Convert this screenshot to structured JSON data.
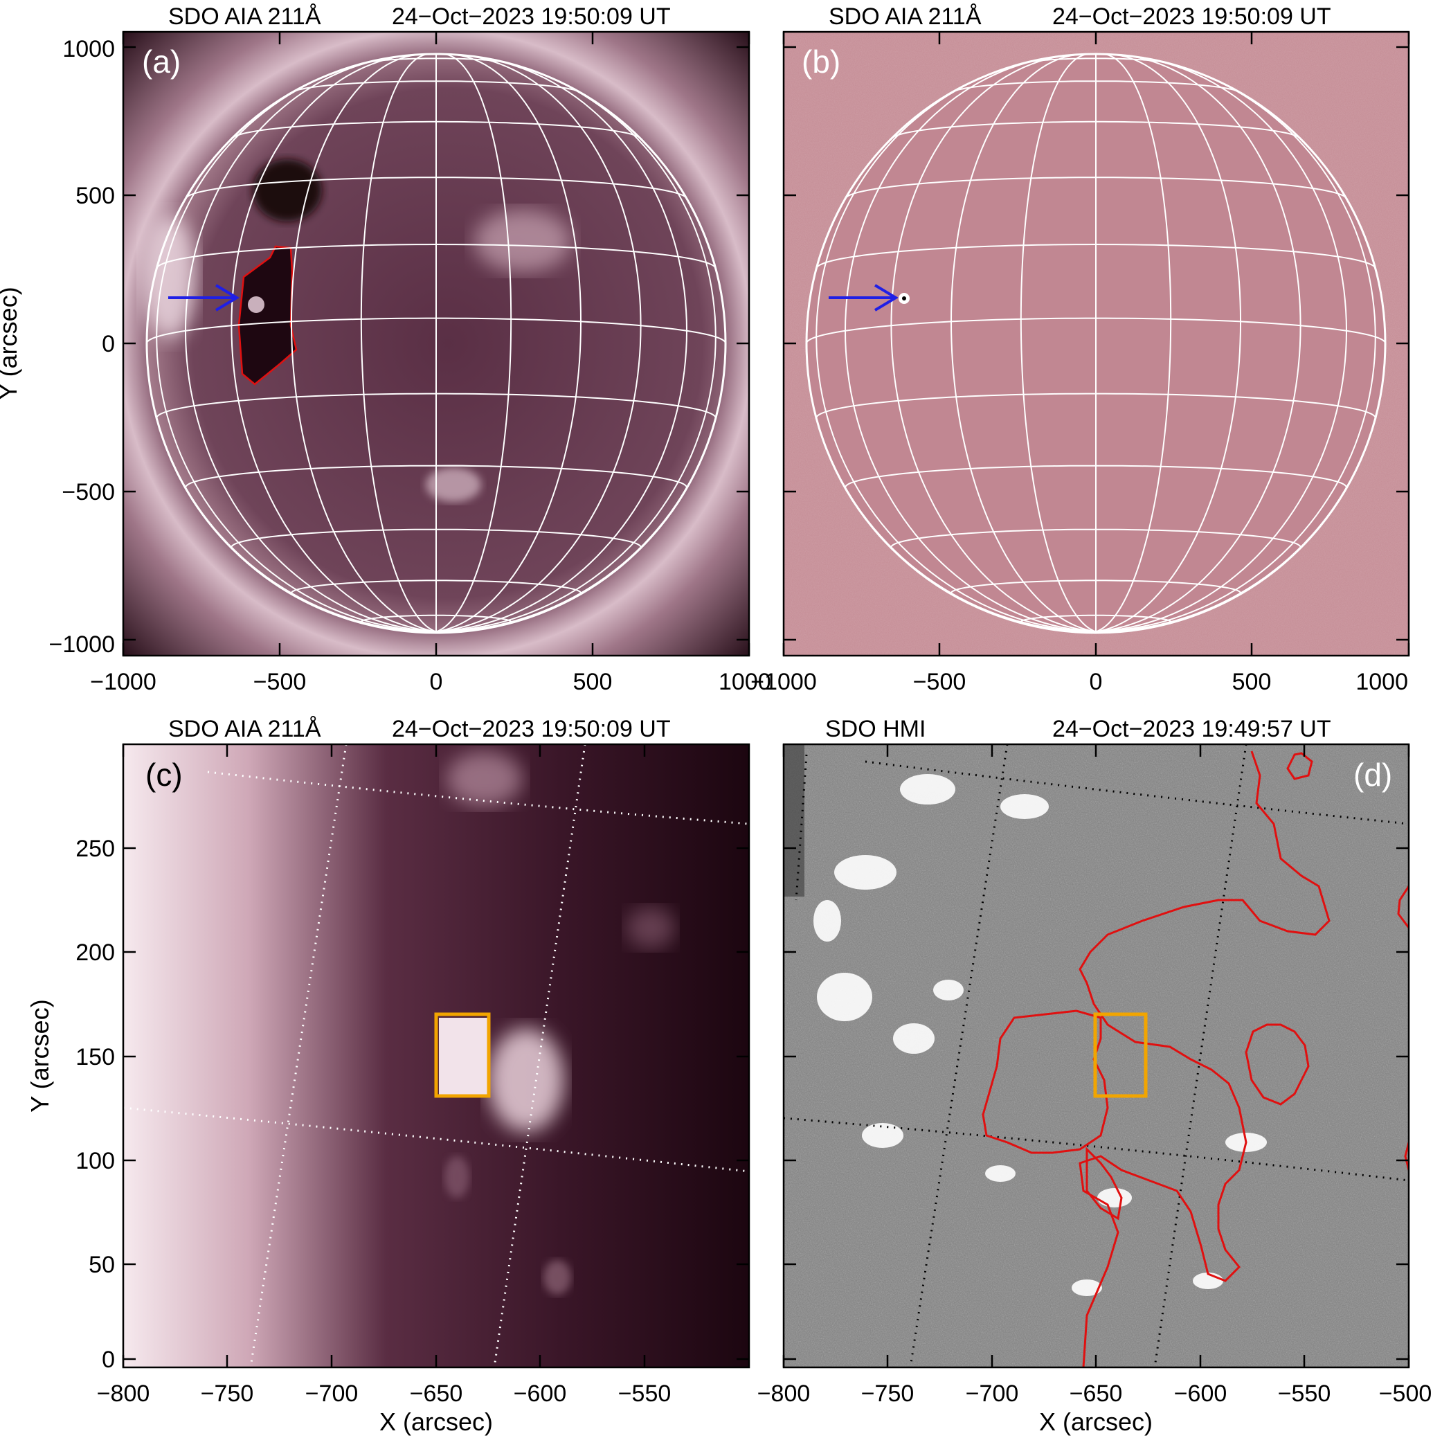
{
  "panels": [
    {
      "id": "a",
      "label": "(a)",
      "title_left": "SDO AIA 211Å",
      "title_right": "24−Oct−2023 19:50:09 UT",
      "xticks": [
        "−1000",
        "−500",
        "0",
        "500",
        "1000"
      ],
      "yticks": [
        "1000",
        "500",
        "0",
        "−500",
        "−1000"
      ],
      "ylabel": "Y (arcsec)",
      "xlabel": ""
    },
    {
      "id": "b",
      "label": "(b)",
      "title_left": "SDO AIA 211Å",
      "title_right": "24−Oct−2023 19:50:09 UT",
      "xticks": [
        "−1000",
        "−500",
        "0",
        "500",
        "1000"
      ],
      "yticks": [],
      "ylabel": "",
      "xlabel": ""
    },
    {
      "id": "c",
      "label": "(c)",
      "title_left": "SDO AIA 211Å",
      "title_right": "24−Oct−2023 19:50:09 UT",
      "xticks": [
        "−800",
        "−750",
        "−700",
        "−650",
        "−600",
        "−550"
      ],
      "yticks": [
        "250",
        "200",
        "150",
        "100",
        "50",
        "0"
      ],
      "ylabel": "Y (arcsec)",
      "xlabel": "X (arcsec)"
    },
    {
      "id": "d",
      "label": "(d)",
      "title_left": "SDO HMI",
      "title_right": "24−Oct−2023 19:49:57 UT",
      "xticks": [
        "−800",
        "−750",
        "−700",
        "−650",
        "−600",
        "−550",
        "−500"
      ],
      "yticks": [],
      "ylabel": "",
      "xlabel": "X (arcsec)"
    }
  ],
  "colors": {
    "aia_dark": "#1e0711",
    "aia_disk": "#6e4459",
    "aia_limb": "#e9d4dc",
    "diff_bg": "#c48b94",
    "hmi_gray": "#828282",
    "contour_red": "#e01010",
    "arrow_blue": "#1f1fe6",
    "box_orange": "#f2a500",
    "grid_white": "#ffffff"
  }
}
